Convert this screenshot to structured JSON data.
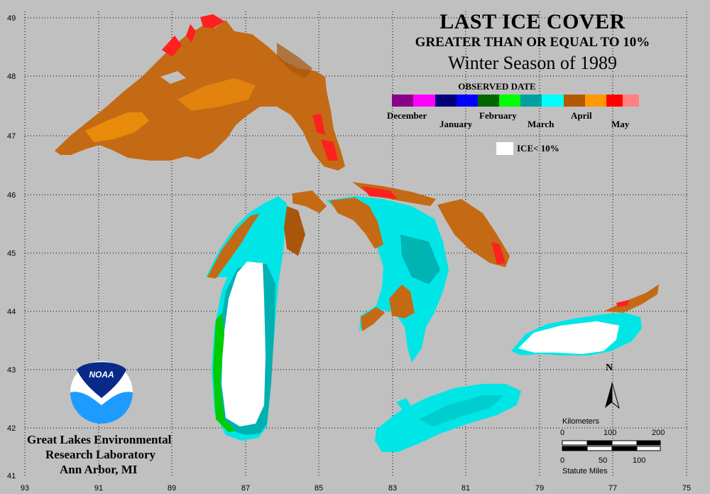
{
  "title": {
    "line1": "LAST ICE COVER",
    "line2": "GREATER THAN OR EQUAL TO 10%",
    "line3": "Winter Season of 1989"
  },
  "legend": {
    "heading": "OBSERVED DATE",
    "months": [
      {
        "label": "December",
        "colors": [
          "#8a008a",
          "#ff00ff"
        ]
      },
      {
        "label": "January",
        "colors": [
          "#00007a",
          "#0000ff"
        ]
      },
      {
        "label": "February",
        "colors": [
          "#006600",
          "#00ff00"
        ]
      },
      {
        "label": "March",
        "colors": [
          "#00a0a0",
          "#00ffff"
        ]
      },
      {
        "label": "April",
        "colors": [
          "#b35a00",
          "#ff9900"
        ]
      },
      {
        "label": "May",
        "colors": [
          "#ff0000",
          "#ff8080"
        ]
      }
    ],
    "ice_label": "ICE< 10%",
    "ice_color": "#ffffff"
  },
  "axes": {
    "latitude_labels": [
      "49",
      "48",
      "47",
      "46",
      "45",
      "44",
      "43",
      "42",
      "41"
    ],
    "longitude_labels": [
      "93",
      "91",
      "89",
      "87",
      "85",
      "83",
      "81",
      "79",
      "77",
      "75"
    ]
  },
  "north_label": "N",
  "scale": {
    "km_title": "Kilometers",
    "km_ticks": [
      "0",
      "100",
      "200"
    ],
    "mi_title": "Statute Miles",
    "mi_ticks": [
      "0",
      "50",
      "100"
    ]
  },
  "logo_text": "NOAA",
  "credit": {
    "line1": "Great Lakes Environmental",
    "line2": "Research Laboratory",
    "line3": "Ann Arbor, MI"
  }
}
